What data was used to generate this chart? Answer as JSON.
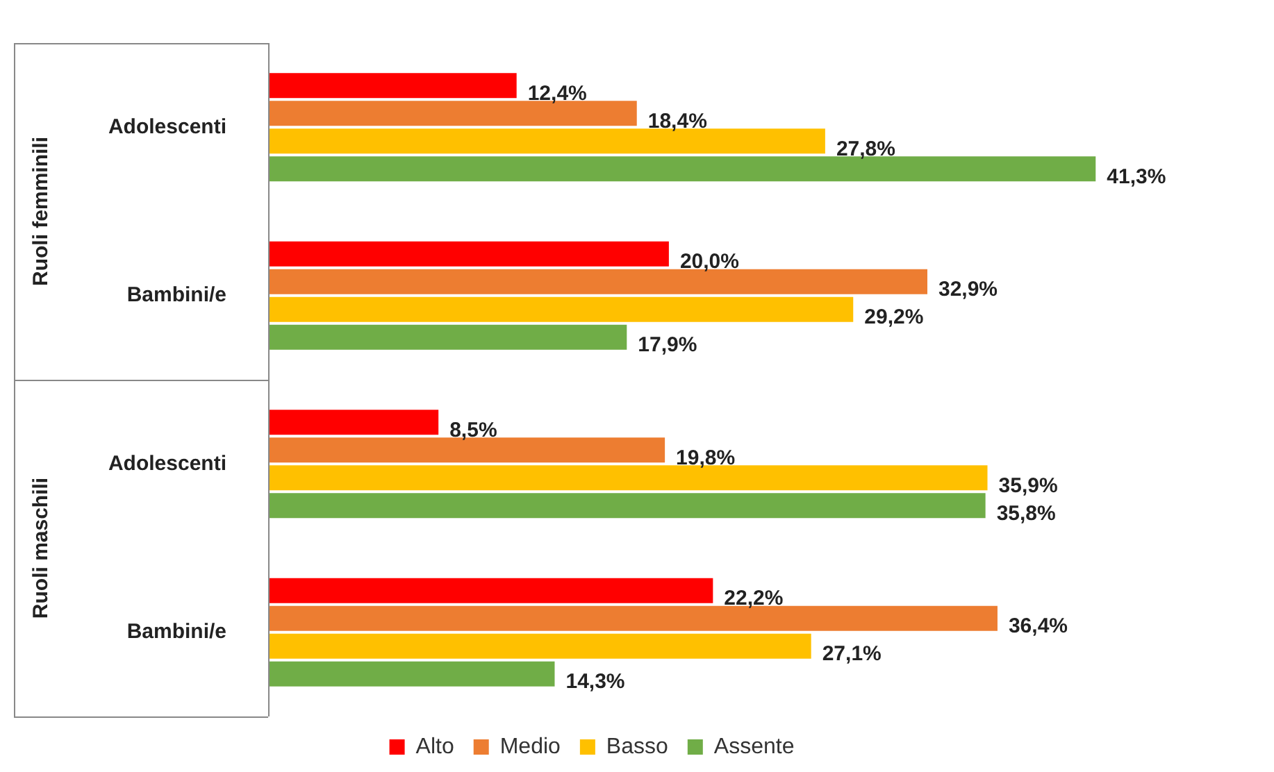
{
  "chart_data": {
    "type": "bar",
    "orientation": "horizontal",
    "categories": [
      "Adolescenti",
      "Bambini/e",
      "Adolescenti",
      "Bambini/e"
    ],
    "annotations": [
      "Ruoli femminili",
      "Ruoli maschili"
    ],
    "series": [
      {
        "name": "Alto",
        "color": "#ff0000",
        "values": [
          12.4,
          20.0,
          8.5,
          22.2
        ],
        "value_labels": [
          "12,4%",
          "20,0%",
          "8,5%",
          "22,2%"
        ]
      },
      {
        "name": "Medio",
        "color": "#ed7d31",
        "values": [
          18.4,
          32.9,
          19.8,
          36.4
        ],
        "value_labels": [
          "18,4%",
          "32,9%",
          "19,8%",
          "36,4%"
        ]
      },
      {
        "name": "Basso",
        "color": "#ffc000",
        "values": [
          27.8,
          29.2,
          35.9,
          27.1
        ],
        "value_labels": [
          "27,8%",
          "29,2%",
          "35,9%",
          "27,1%"
        ]
      },
      {
        "name": "Assente",
        "color": "#70ad47",
        "values": [
          41.3,
          17.9,
          35.8,
          14.3
        ],
        "value_labels": [
          "41,3%",
          "17,9%",
          "35,8%",
          "14,3%"
        ]
      }
    ],
    "legend": "bottom"
  }
}
